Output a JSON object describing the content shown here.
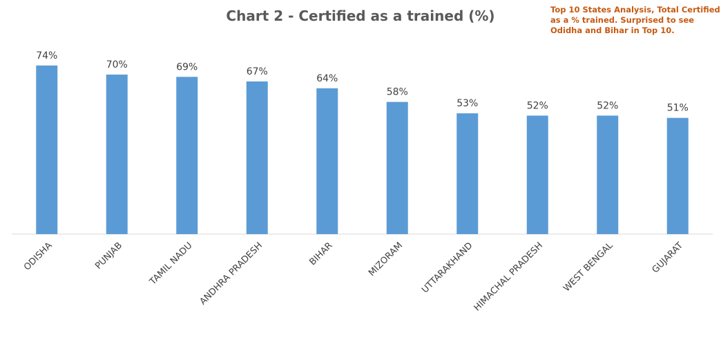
{
  "chart_data": {
    "type": "bar",
    "title": "Chart 2 - Certified as a trained (%)",
    "annotation": [
      "Top 10  States Analysis, Total Certified",
      "as a % trained. Surprised to see",
      "Odidha and Bihar in Top 10."
    ],
    "categories": [
      "ODISHA",
      "PUNJAB",
      "TAMIL NADU",
      "ANDHRA PRADESH",
      "BIHAR",
      "MIZORAM",
      "UTTARAKHAND",
      "HIMACHAL PRADESH",
      "WEST BENGAL",
      "GUJARAT"
    ],
    "values": [
      74,
      70,
      69,
      67,
      64,
      58,
      53,
      52,
      52,
      51
    ],
    "value_labels": [
      "74%",
      "70%",
      "69%",
      "67%",
      "64%",
      "58%",
      "53%",
      "52%",
      "52%",
      "51%"
    ],
    "ylim": [
      0,
      80
    ],
    "grid": false,
    "legend": "none",
    "bar_color": "#5b9bd5",
    "axis_color": "#d9d9d9",
    "label_color": "#404040",
    "title_color": "#595959",
    "annotation_color": "#c55a11"
  }
}
